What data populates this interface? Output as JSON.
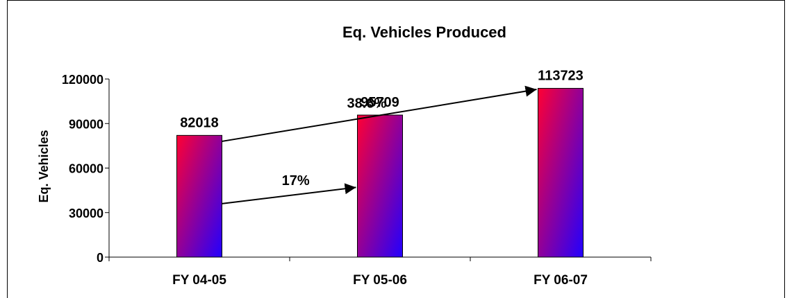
{
  "chart_data": {
    "type": "bar",
    "title": "Eq. Vehicles Produced",
    "xlabel": "",
    "ylabel": "Eq. Vehicles",
    "categories": [
      "FY 04-05",
      "FY 05-06",
      "FY 06-07"
    ],
    "values": [
      82018,
      95709,
      113723
    ],
    "data_labels": [
      "82018",
      "95709",
      "113723"
    ],
    "y_ticks": [
      0,
      30000,
      60000,
      90000,
      120000
    ],
    "y_tick_labels": [
      "0",
      "30000",
      "60000",
      "90000",
      "120000"
    ],
    "ylim": [
      0,
      120000
    ],
    "grid": false,
    "legend": "none",
    "bar_gradient": {
      "top": "#ff0033",
      "bottom": "#2200ff"
    },
    "annotations": [
      {
        "text": "17%",
        "from_category": "FY 04-05",
        "to_category": "FY 05-06",
        "from_value": 36000,
        "to_value": 47000
      },
      {
        "text": "38.6%",
        "from_category": "FY 04-05",
        "to_category": "FY 06-07",
        "from_value": 78000,
        "to_value": 113000
      }
    ]
  }
}
